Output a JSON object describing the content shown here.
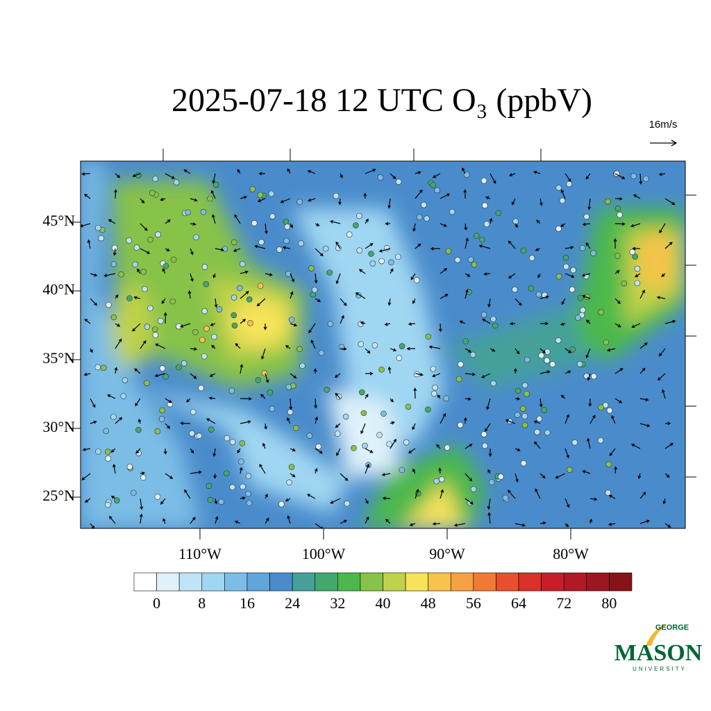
{
  "map": {
    "title": "2025-07-18 12 UTC O₃ (ppbV)",
    "vector_scale_label": "16m/s",
    "lat_labels": [
      {
        "value": 45,
        "label": "45°N"
      },
      {
        "value": 40,
        "label": "40°N"
      },
      {
        "value": 35,
        "label": "35°N"
      },
      {
        "value": 30,
        "label": "30°N"
      },
      {
        "value": 25,
        "label": "25°N"
      }
    ],
    "lon_labels": [
      {
        "value": -110,
        "label": "110°W"
      },
      {
        "value": -100,
        "label": "100°W"
      },
      {
        "value": -90,
        "label": "90°W"
      },
      {
        "value": -80,
        "label": "80°W"
      }
    ],
    "colorbar": {
      "levels": [
        0,
        4,
        8,
        12,
        16,
        20,
        24,
        28,
        32,
        36,
        40,
        44,
        48,
        52,
        56,
        60,
        64,
        68,
        72,
        76,
        80
      ],
      "colors": [
        "#ffffff",
        "#dff1fa",
        "#bfe4f6",
        "#9fd6f2",
        "#7cbde6",
        "#5ea6dc",
        "#4a8ccb",
        "#45a09a",
        "#43a86c",
        "#4cb84c",
        "#87c24a",
        "#bfd24a",
        "#f7e35a",
        "#f9c24a",
        "#f6a143",
        "#f07a35",
        "#e6502d",
        "#da3128",
        "#c81e2a",
        "#b01a26",
        "#9a1822",
        "#841418"
      ],
      "ticks": [
        0,
        8,
        16,
        24,
        32,
        40,
        48,
        56,
        64,
        72,
        80
      ]
    },
    "logo": {
      "top": "GEORGE",
      "main": "MASON",
      "bottom": "UNIVERSITY"
    }
  }
}
